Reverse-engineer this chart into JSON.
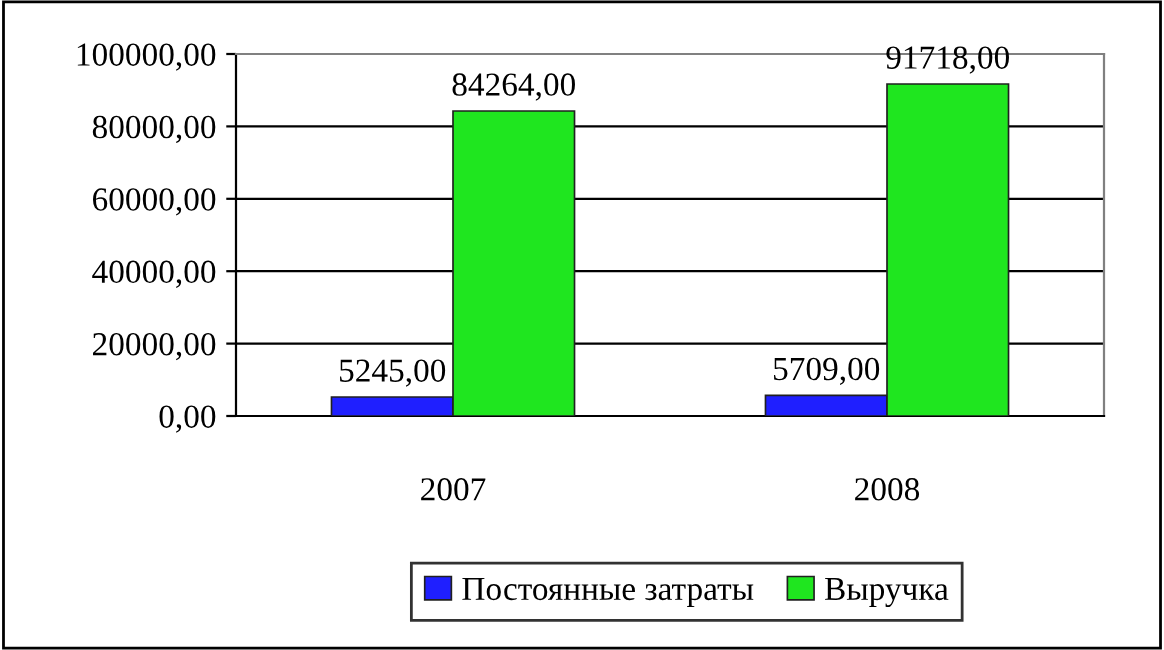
{
  "chart_data": {
    "type": "bar",
    "categories": [
      "2007",
      "2008"
    ],
    "series": [
      {
        "name": "Постоянные затраты",
        "color": "#1f1fff",
        "values": [
          5245,
          5709
        ],
        "value_labels": [
          "5245,00",
          "5709,00"
        ]
      },
      {
        "name": "Выручка",
        "color": "#1fe61f",
        "values": [
          84264,
          91718
        ],
        "value_labels": [
          "84264,00",
          "91718,00"
        ]
      }
    ],
    "ylim": [
      0,
      100000
    ],
    "yticks": [
      {
        "value": 0,
        "label": "0,00"
      },
      {
        "value": 20000,
        "label": "20000,00"
      },
      {
        "value": 40000,
        "label": "40000,00"
      },
      {
        "value": 60000,
        "label": "60000,00"
      },
      {
        "value": 80000,
        "label": "80000,00"
      },
      {
        "value": 100000,
        "label": "100000,00"
      }
    ],
    "grid": "y",
    "legend": "bottom"
  }
}
